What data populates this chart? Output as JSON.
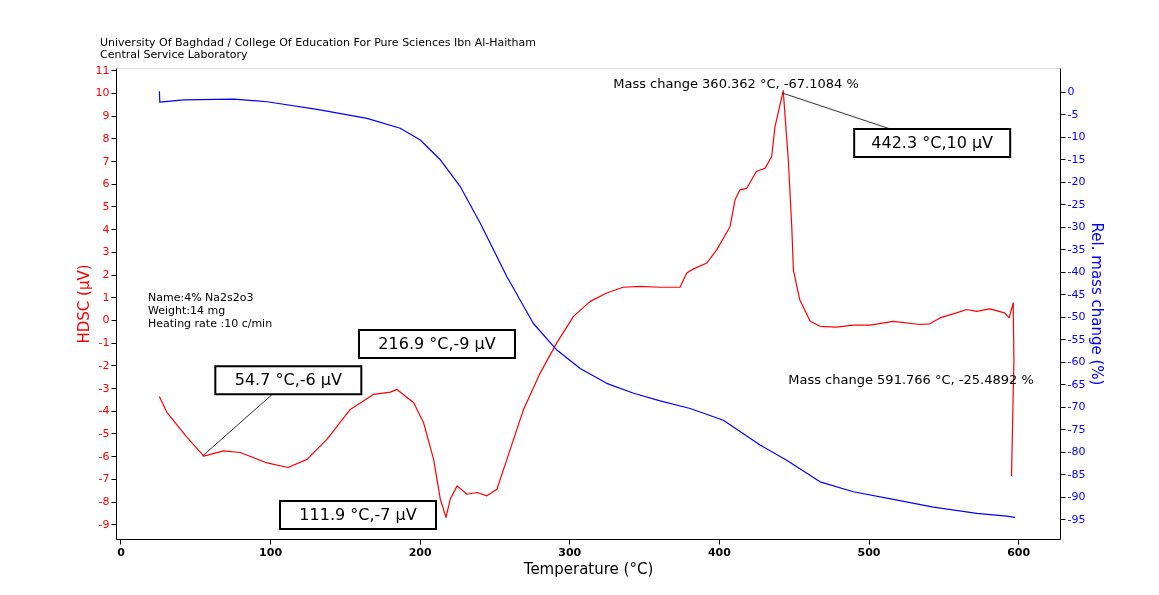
{
  "chart_data": {
    "type": "line",
    "title": "University Of Baghdad / College Of Education For Pure Sciences Ibn Al-Haitham",
    "subtitle": "Central Service Laboratory",
    "xlabel": "Temperature (°C)",
    "ylabel": "HDSC (µV)",
    "y2label": "Rel. mass change (%)",
    "xlim": [
      -3,
      628
    ],
    "xticks": [
      0,
      100,
      200,
      300,
      400,
      500,
      600
    ],
    "ylim": [
      -9.65,
      11.1
    ],
    "yticks": [
      -9,
      -8,
      -7,
      -6,
      -5,
      -4,
      -3,
      -2,
      -1,
      0,
      1,
      2,
      3,
      4,
      5,
      6,
      7,
      8,
      9,
      10,
      11
    ],
    "y2lim": [
      -99.4,
      5.3
    ],
    "y2ticks": [
      -95,
      -90,
      -85,
      -80,
      -75,
      -70,
      -65,
      -60,
      -55,
      -50,
      -45,
      -40,
      -35,
      -30,
      -25,
      -20,
      -15,
      -10,
      -5,
      0
    ],
    "grid": false,
    "legend": false,
    "marker": "none",
    "line_style": "solid",
    "series": [
      {
        "color": "#ff0000",
        "x": [
          26,
          31,
          44.5,
          55.7,
          69,
          80,
          98,
          112,
          124.7,
          138,
          153.6,
          169,
          180.4,
          184.8,
          196,
          202.6,
          209.3,
          213.8,
          217.6,
          220.4,
          225,
          231.6,
          238.3,
          245,
          251.6,
          258.3,
          269.4,
          280.6,
          291.7,
          302.8,
          314,
          325,
          336,
          347.4,
          360.7,
          374,
          378.5,
          383,
          392,
          398.6,
          407.5,
          410.8,
          414,
          418.6,
          425,
          430.9,
          435.3,
          437.5,
          443,
          446.4,
          448.7,
          449.8,
          454,
          461,
          467.6,
          478.7,
          489.8,
          501,
          516.6,
          534.4,
          541,
          547.8,
          558.9,
          565.6,
          572.3,
          581,
          591,
          594,
          596.7,
          597.2,
          595.6
        ],
        "values": [
          -3.37,
          -4.07,
          -5.17,
          -6.0,
          -5.77,
          -5.84,
          -6.3,
          -6.5,
          -6.14,
          -5.26,
          -3.94,
          -3.28,
          -3.18,
          -3.06,
          -3.65,
          -4.53,
          -6.14,
          -7.9,
          -8.7,
          -7.9,
          -7.31,
          -7.68,
          -7.6,
          -7.75,
          -7.46,
          -6.14,
          -3.94,
          -2.33,
          -1.0,
          0.16,
          0.82,
          1.19,
          1.44,
          1.48,
          1.44,
          1.44,
          2.07,
          2.25,
          2.51,
          3.1,
          4.12,
          5.3,
          5.73,
          5.8,
          6.54,
          6.69,
          7.2,
          8.52,
          10.1,
          7.05,
          4.12,
          2.2,
          0.9,
          -0.06,
          -0.28,
          -0.32,
          -0.23,
          -0.23,
          -0.06,
          -0.2,
          -0.17,
          0.09,
          0.31,
          0.46,
          0.38,
          0.49,
          0.31,
          0.09,
          0.75,
          -1.74,
          -6.87
        ]
      },
      {
        "color": "#0000ff",
        "axis": "y2",
        "x": [
          26,
          26.3,
          42.3,
          75.7,
          98,
          131.4,
          164.8,
          187,
          200.4,
          213.8,
          227,
          240.5,
          258.3,
          276,
          291.7,
          307.3,
          325,
          343,
          360.7,
          380.8,
          403,
          427.5,
          445.3,
          467.6,
          489.8,
          516.6,
          543.3,
          572.3,
          592.3,
          597.9
        ],
        "values": [
          0.1,
          -2.3,
          -1.8,
          -1.6,
          -2.2,
          -3.9,
          -5.9,
          -8.1,
          -10.7,
          -15.1,
          -21,
          -29.2,
          -41.1,
          -51.5,
          -57.4,
          -61.5,
          -64.8,
          -67.0,
          -68.7,
          -70.4,
          -73,
          -78.5,
          -81.9,
          -86.7,
          -88.9,
          -90.6,
          -92.3,
          -93.7,
          -94.3,
          -94.6
        ]
      }
    ],
    "annotations": [
      {
        "text": "54.7 °C,-6 µV",
        "x": 54.7,
        "y": -6
      },
      "111.9 °C,-7 µV",
      "216.9 °C,-9 µV",
      {
        "text": "442.3 °C,10 µV",
        "x": 442.3,
        "y": 10
      },
      "Mass change 360.362 °C,  -67.1084 %",
      "Mass change 591.766 °C,  -25.4892 %",
      "Name:4%  Na2s2o3",
      "Weight:14 mg",
      "Heating rate :10 c/min"
    ]
  }
}
